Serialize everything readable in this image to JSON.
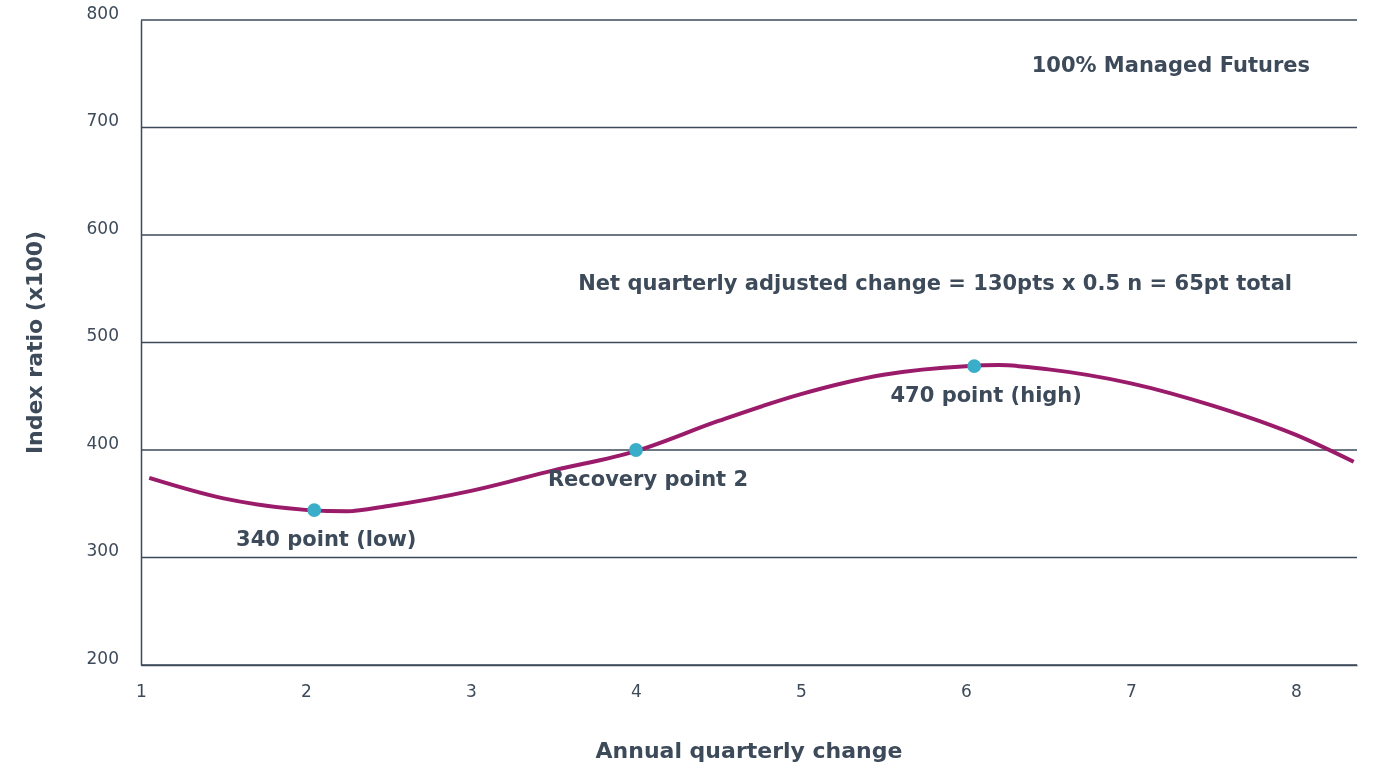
{
  "chart_data": {
    "type": "line",
    "xlabel": "Annual quarterly change",
    "ylabel": "Index ratio (x100)",
    "xlim": [
      1,
      8.37
    ],
    "xticks": [
      1,
      2,
      3,
      4,
      5,
      6,
      7,
      8
    ],
    "ylim": [
      200,
      800
    ],
    "yticks": [
      200,
      300,
      400,
      500,
      600,
      700,
      800
    ],
    "grid": "y",
    "marker": "none",
    "line_style": "solid",
    "series": [
      {
        "color": "#9b1b6b",
        "x": [
          1.05,
          1.5,
          2.25,
          2.5,
          3,
          3.5,
          4,
          4.5,
          5,
          5.5,
          6,
          6.2,
          6.5,
          7,
          7.5,
          8,
          8.35
        ],
        "values": [
          374,
          355,
          343,
          348,
          362,
          381,
          399,
          427,
          452,
          470,
          478,
          479,
          475,
          462,
          441,
          414,
          389
        ]
      },
      {
        "type": "scatter",
        "color": "#3aaec8",
        "marker": "circle",
        "x": [
          2.05,
          4,
          6.05
        ],
        "values": [
          344,
          400,
          478
        ]
      }
    ],
    "annotations": [
      "100% Managed Futures",
      "Net quarterly adjusted change = 130pts x 0.5 n = 65pt total",
      {
        "text": "340 point (low)",
        "x": 2.05,
        "y": 344
      },
      {
        "text": "Recovery point 2",
        "x": 4,
        "y": 400
      },
      {
        "text": "470 point (high)",
        "x": 6.05,
        "y": 478
      }
    ]
  }
}
